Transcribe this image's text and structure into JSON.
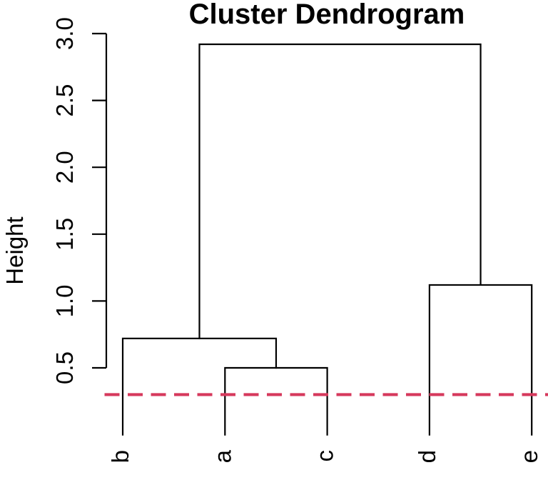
{
  "chart_data": {
    "type": "dendrogram",
    "title": "Cluster Dendrogram",
    "ylabel": "Height",
    "xlabel": "",
    "leaves": [
      "b",
      "a",
      "c",
      "d",
      "e"
    ],
    "leaf_height": 0,
    "merges": [
      {
        "id": "ac",
        "children": [
          "a",
          "c"
        ],
        "height": 0.5
      },
      {
        "id": "bac",
        "children": [
          "b",
          "ac"
        ],
        "height": 0.72
      },
      {
        "id": "de",
        "children": [
          "d",
          "e"
        ],
        "height": 1.12
      },
      {
        "id": "root",
        "children": [
          "bac",
          "de"
        ],
        "height": 2.92
      }
    ],
    "ytick_values": [
      0.5,
      1.0,
      1.5,
      2.0,
      2.5,
      3.0
    ],
    "ytick_labels": [
      "0.5",
      "1.0",
      "1.5",
      "2.0",
      "2.5",
      "3.0"
    ],
    "ylim": [
      0,
      3.0
    ],
    "grid": false,
    "legend": "none",
    "line_color": "#000000",
    "background_color": "#ffffff",
    "cut_line": {
      "height": 0.3,
      "color": "#d6395c",
      "style": "dashed"
    }
  }
}
